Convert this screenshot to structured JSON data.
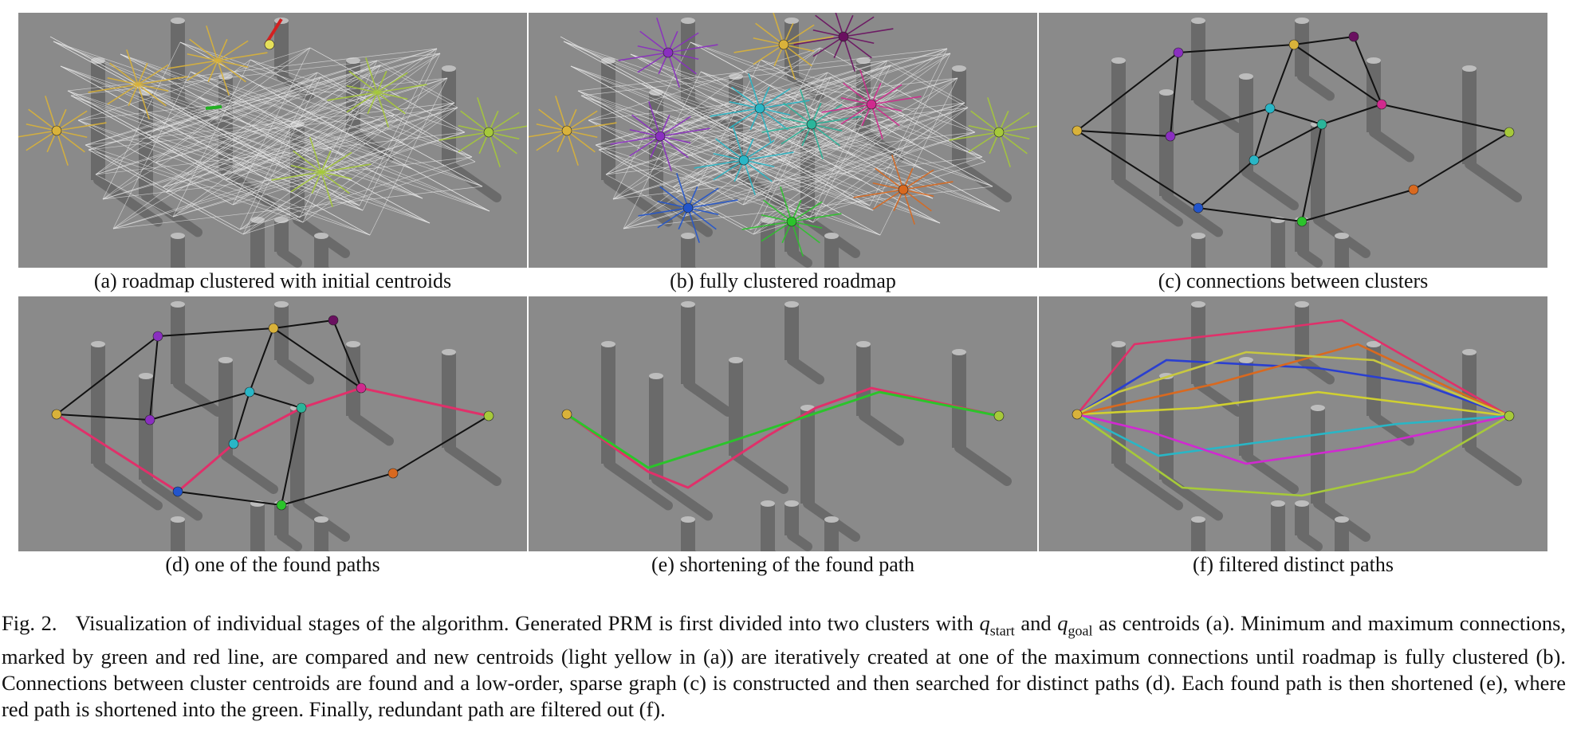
{
  "figure": {
    "panels": [
      {
        "id": "a",
        "label": "(a) roadmap clustered with initial centroids"
      },
      {
        "id": "b",
        "label": "(b) fully clustered roadmap"
      },
      {
        "id": "c",
        "label": "(c) connections between clusters"
      },
      {
        "id": "d",
        "label": "(d) one of the found paths"
      },
      {
        "id": "e",
        "label": "(e) shortening of the found path"
      },
      {
        "id": "f",
        "label": "(f) filtered distinct paths"
      }
    ],
    "caption": {
      "fig_label": "Fig. 2.",
      "part1": "Visualization of individual stages of the algorithm. Generated PRM is first divided into two clusters with ",
      "q_start": "q",
      "q_start_sub": "start",
      "part2": " and ",
      "q_goal": "q",
      "q_goal_sub": "goal",
      "part3": " as centroids (a). Minimum and maximum connections, marked by green and red line, are compared and new centroids (light yellow in (a)) are iteratively created at one of the maximum connections until roadmap is fully clustered (b). Connections between cluster centroids are found and a low-order, sparse graph (c) is constructed and then searched for distinct paths (d). Each found path is then shortened (e), where red path is shortened into the green. Finally, redundant path are filtered out (f)."
    }
  },
  "colors": {
    "floor": "#8a8a8a",
    "pillar": "#6a6a6a",
    "pillar_top": "#bdbdbd",
    "cluster_yellow": "#d9b23a",
    "cluster_green": "#a6c93a",
    "cluster_purple": "#8a2fc0",
    "cluster_cyan": "#29b6c6",
    "cluster_magenta": "#d02a8e",
    "cluster_blue": "#2255cc",
    "cluster_orange": "#d9691f",
    "path_red": "#e0306a",
    "path_green": "#2bc42b"
  }
}
